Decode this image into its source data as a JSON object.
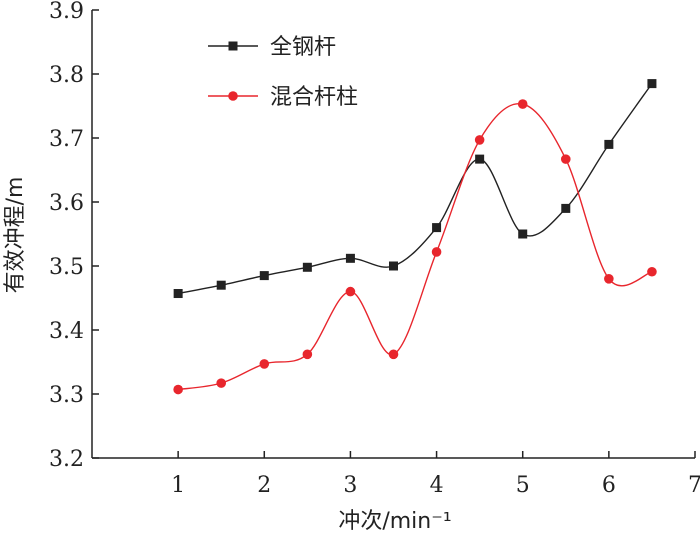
{
  "chart_data": {
    "type": "line",
    "title": "",
    "xlabel": "冲次/min⁻¹",
    "ylabel": "有效冲程/m",
    "xlim": [
      0,
      7
    ],
    "ylim": [
      3.2,
      3.9
    ],
    "xticks": [
      "1",
      "2",
      "3",
      "4",
      "5",
      "6",
      "7"
    ],
    "yticks": [
      "3.2",
      "3.3",
      "3.4",
      "3.5",
      "3.6",
      "3.7",
      "3.8",
      "3.9"
    ],
    "grid": false,
    "legend_position": "top-left",
    "series": [
      {
        "name": "全钢杆",
        "color": "#222222",
        "marker": "square",
        "x": [
          1,
          1.5,
          2,
          2.5,
          3,
          3.5,
          4,
          4.5,
          5,
          5.5,
          6,
          6.5
        ],
        "values": [
          3.457,
          3.47,
          3.485,
          3.498,
          3.512,
          3.5,
          3.56,
          3.667,
          3.55,
          3.59,
          3.69,
          3.785
        ]
      },
      {
        "name": "混合杆柱",
        "color": "#e8262d",
        "marker": "circle",
        "x": [
          1,
          1.5,
          2,
          2.5,
          3,
          3.5,
          4,
          4.5,
          5,
          5.5,
          6,
          6.5
        ],
        "values": [
          3.307,
          3.317,
          3.347,
          3.362,
          3.46,
          3.362,
          3.522,
          3.697,
          3.753,
          3.667,
          3.48,
          3.491
        ]
      }
    ]
  }
}
